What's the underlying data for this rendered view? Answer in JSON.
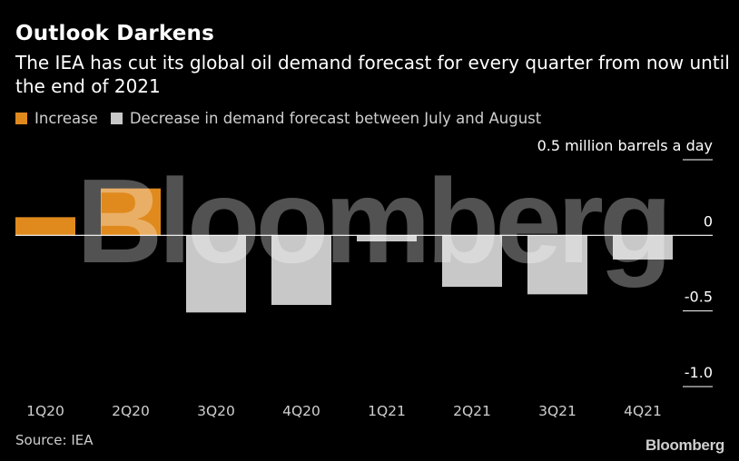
{
  "title": "Outlook Darkens",
  "subtitle": "The IEA has cut its global oil demand forecast for every quarter from now until the end of 2021",
  "legend": [
    {
      "label": "Increase",
      "color": "#e08a1e"
    },
    {
      "label": "Decrease in demand forecast between July and August",
      "color": "#c8c8c8"
    }
  ],
  "source": "Source: IEA",
  "brand": "Bloomberg",
  "watermark": "Bloomberg",
  "chart_data": {
    "type": "bar",
    "categories": [
      "1Q20",
      "2Q20",
      "3Q20",
      "4Q20",
      "1Q21",
      "2Q21",
      "3Q21",
      "4Q21"
    ],
    "values": [
      0.12,
      0.31,
      -0.51,
      -0.46,
      -0.04,
      -0.34,
      -0.39,
      -0.16
    ],
    "unit_label": "0.5 million barrels a day",
    "ylim": [
      -1.0,
      0.5
    ],
    "yticks": [
      0.5,
      0,
      -0.5,
      -1.0
    ],
    "ytick_labels": [
      "0.5",
      "0",
      "-0.5",
      "-1.0"
    ],
    "increase_color": "#e08a1e",
    "decrease_color": "#c8c8c8",
    "zero_line_color": "#ffffff",
    "grid": false,
    "legend_position": "top-left"
  }
}
